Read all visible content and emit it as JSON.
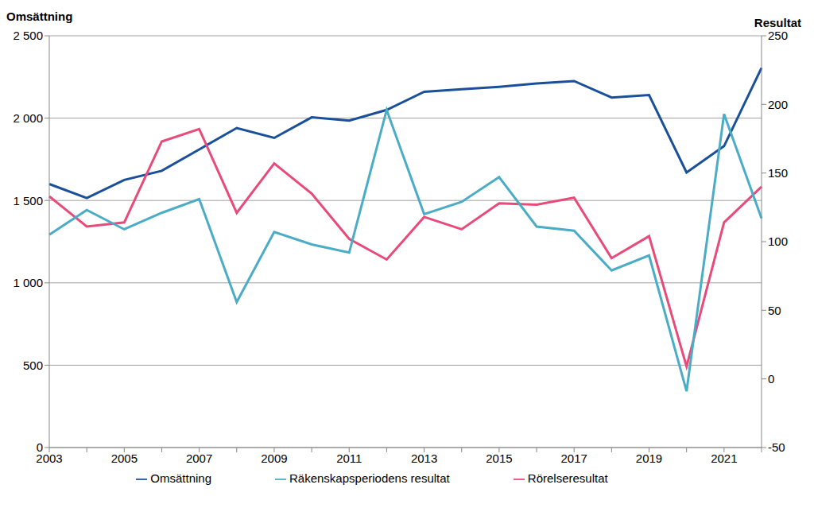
{
  "chart_data": {
    "type": "line",
    "y_label": "Omsättning",
    "y2_label": "Resultat",
    "categories": [
      "2003",
      null,
      "2005",
      null,
      "2007",
      null,
      "2009",
      null,
      "2011",
      null,
      "2013",
      null,
      "2015",
      null,
      "2017",
      null,
      "2019",
      null,
      "2021",
      null
    ],
    "series": [
      {
        "name": "Omsättning",
        "color": "#1a4f9a",
        "axis": "y",
        "values": [
          1600,
          1515,
          1625,
          1680,
          1810,
          1940,
          1880,
          2005,
          1985,
          2050,
          2160,
          2175,
          2190,
          2210,
          2225,
          2125,
          2140,
          1670,
          1830,
          2305
        ]
      },
      {
        "name": "Rörelseresultat",
        "color": "#e84a7a",
        "axis": "y2",
        "values": [
          133,
          111,
          114,
          173,
          182,
          121,
          157,
          135,
          102,
          87,
          118,
          109,
          128,
          127,
          132,
          88,
          104,
          9,
          114,
          140
        ]
      },
      {
        "name": "Räkenskapsperiodens resultat",
        "color": "#4bacc6",
        "axis": "y2",
        "values": [
          105,
          123,
          109,
          121,
          131,
          56,
          107,
          98,
          92,
          196,
          120,
          129,
          147,
          111,
          108,
          79,
          90,
          -9,
          193,
          117
        ]
      }
    ],
    "ylim": [
      0,
      2500
    ],
    "yticks": [
      0,
      500,
      {
        "value": 1000,
        "label": "1 000"
      },
      {
        "value": 1500,
        "label": "1 500"
      },
      {
        "value": 2000,
        "label": "2 000"
      },
      {
        "value": 2500,
        "label": "2 500"
      }
    ],
    "y2lim": [
      -50,
      250
    ],
    "y2ticks": [
      -50,
      0,
      50,
      100,
      150,
      200,
      250
    ],
    "grid": true,
    "legend": "bottom"
  }
}
